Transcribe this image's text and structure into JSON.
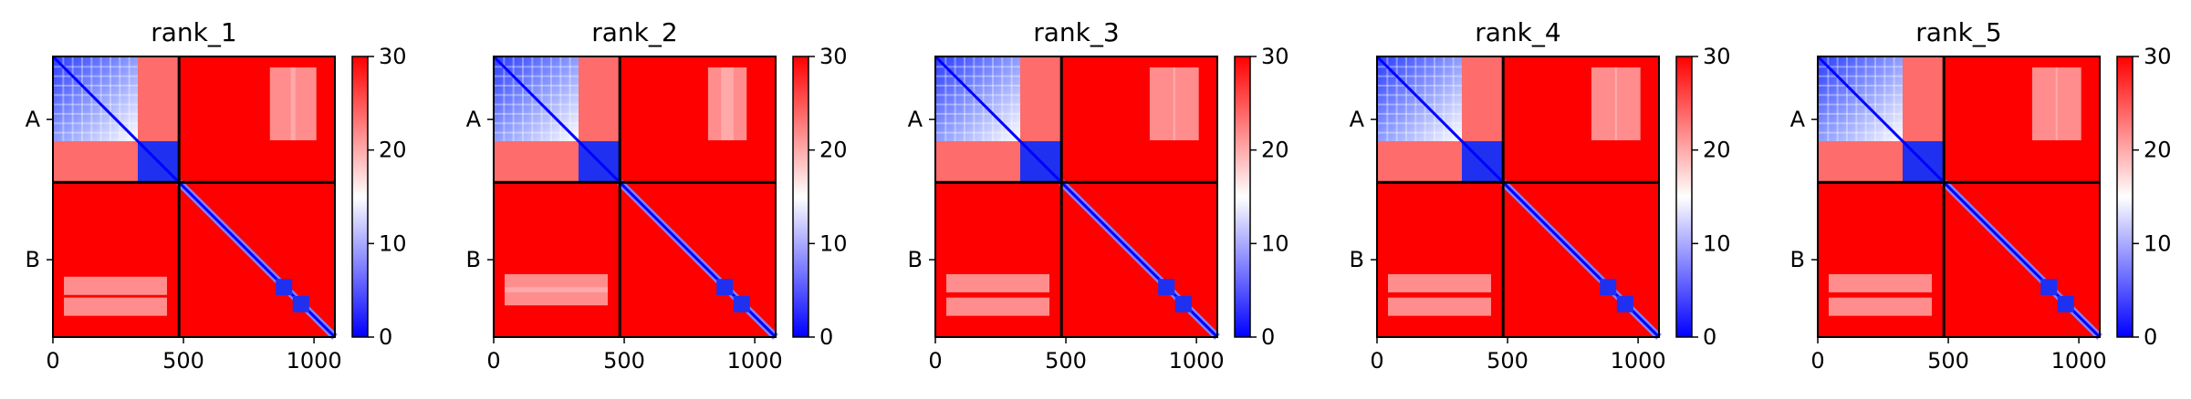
{
  "chart_data": [
    {
      "type": "heatmap",
      "title": "rank_1",
      "x_ticks": [
        0,
        500,
        1000
      ],
      "x_range": [
        0,
        1080
      ],
      "y_ticks": [
        "A",
        "B"
      ],
      "chain_boundary": 483,
      "colorbar": {
        "min": 0,
        "max": 30,
        "ticks": [
          0,
          10,
          20,
          30
        ],
        "colors": [
          "#0000ff",
          "#ffffff",
          "#ff0000"
        ]
      },
      "features": {
        "a_block_split": 325,
        "a_stripes_x": [
          880,
          960
        ],
        "b_stripes_y": [
          880,
          960
        ],
        "b_dots": [
          [
            885,
            885
          ],
          [
            950,
            950
          ]
        ]
      }
    },
    {
      "type": "heatmap",
      "title": "rank_2",
      "x_ticks": [
        0,
        500,
        1000
      ],
      "x_range": [
        0,
        1080
      ],
      "y_ticks": [
        "A",
        "B"
      ],
      "chain_boundary": 483,
      "colorbar": {
        "min": 0,
        "max": 30,
        "ticks": [
          0,
          10,
          20,
          30
        ],
        "colors": [
          "#0000ff",
          "#ffffff",
          "#ff0000"
        ]
      },
      "features": {
        "a_block_split": 325,
        "a_stripes_x": [
          870,
          920
        ],
        "b_stripes_y": [
          870,
          920
        ],
        "b_dots": [
          [
            885,
            885
          ],
          [
            950,
            950
          ]
        ]
      }
    },
    {
      "type": "heatmap",
      "title": "rank_3",
      "x_ticks": [
        0,
        500,
        1000
      ],
      "x_range": [
        0,
        1080
      ],
      "y_ticks": [
        "A",
        "B"
      ],
      "chain_boundary": 483,
      "colorbar": {
        "min": 0,
        "max": 30,
        "ticks": [
          0,
          10,
          20,
          30
        ],
        "colors": [
          "#0000ff",
          "#ffffff",
          "#ff0000"
        ]
      },
      "features": {
        "a_block_split": 325,
        "a_stripes_x": [
          870,
          960
        ],
        "b_stripes_y": [
          870,
          960
        ],
        "b_dots": [
          [
            885,
            885
          ],
          [
            950,
            950
          ]
        ]
      }
    },
    {
      "type": "heatmap",
      "title": "rank_4",
      "x_ticks": [
        0,
        500,
        1000
      ],
      "x_range": [
        0,
        1080
      ],
      "y_ticks": [
        "A",
        "B"
      ],
      "chain_boundary": 483,
      "colorbar": {
        "min": 0,
        "max": 30,
        "ticks": [
          0,
          10,
          20,
          30
        ],
        "colors": [
          "#0000ff",
          "#ffffff",
          "#ff0000"
        ]
      },
      "features": {
        "a_block_split": 325,
        "a_stripes_x": [
          870,
          960
        ],
        "b_stripes_y": [
          870,
          960
        ],
        "b_dots": [
          [
            885,
            885
          ],
          [
            950,
            950
          ]
        ]
      }
    },
    {
      "type": "heatmap",
      "title": "rank_5",
      "x_ticks": [
        0,
        500,
        1000
      ],
      "x_range": [
        0,
        1080
      ],
      "y_ticks": [
        "A",
        "B"
      ],
      "chain_boundary": 483,
      "colorbar": {
        "min": 0,
        "max": 30,
        "ticks": [
          0,
          10,
          20,
          30
        ],
        "colors": [
          "#0000ff",
          "#ffffff",
          "#ff0000"
        ]
      },
      "features": {
        "a_block_split": 325,
        "a_stripes_x": [
          870,
          960
        ],
        "b_stripes_y": [
          870,
          960
        ],
        "b_dots": [
          [
            885,
            885
          ],
          [
            950,
            950
          ]
        ]
      }
    }
  ]
}
